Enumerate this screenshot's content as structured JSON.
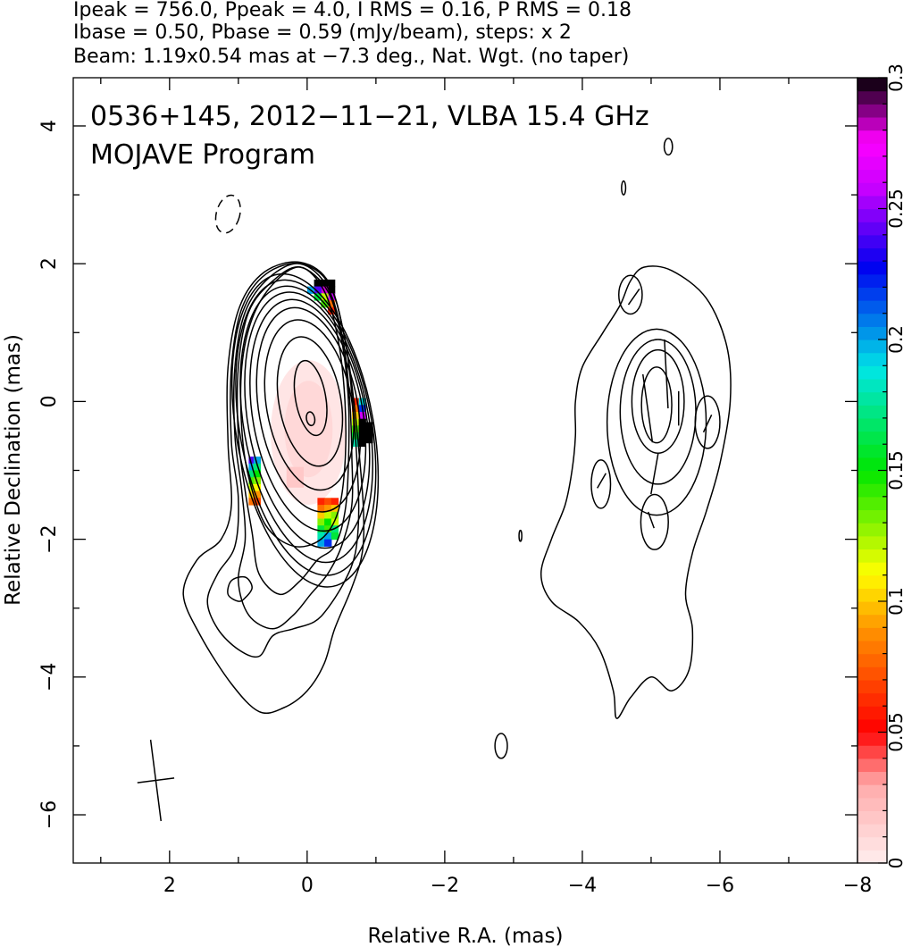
{
  "header": {
    "line1": "Ipeak = 756.0, Ppeak = 4.0, I RMS = 0.16, P RMS = 0.18",
    "line2": "Ibase = 0.50, Pbase = 0.59 (mJy/beam), steps: x 2",
    "line3": "Beam: 1.19x0.54 mas at −7.3 deg., Nat. Wgt. (no taper)"
  },
  "chart_data": {
    "type": "contour",
    "title_line1": "0536+145, 2012−11−21, VLBA 15.4 GHz",
    "title_line2": "MOJAVE Program",
    "xlabel": "Relative R.A. (mas)",
    "ylabel": "Relative Declination (mas)",
    "xlim": [
      3.4,
      -8.0
    ],
    "ylim": [
      -6.7,
      4.7
    ],
    "x_ticks": [
      {
        "v": 2,
        "label": "2"
      },
      {
        "v": 0,
        "label": "0"
      },
      {
        "v": -2,
        "label": "−2"
      },
      {
        "v": -4,
        "label": "−4"
      },
      {
        "v": -6,
        "label": "−6"
      },
      {
        "v": -8,
        "label": "−8"
      }
    ],
    "y_ticks": [
      {
        "v": 4,
        "label": "4"
      },
      {
        "v": 2,
        "label": "2"
      },
      {
        "v": 0,
        "label": "0"
      },
      {
        "v": -2,
        "label": "−2"
      },
      {
        "v": -4,
        "label": "−4"
      },
      {
        "v": -6,
        "label": "−6"
      }
    ],
    "colorbar": {
      "min": 0,
      "max": 0.3,
      "ticks": [
        {
          "v": 0,
          "label": "0"
        },
        {
          "v": 0.05,
          "label": "0.05"
        },
        {
          "v": 0.1,
          "label": "0.1"
        },
        {
          "v": 0.15,
          "label": "0.15"
        },
        {
          "v": 0.2,
          "label": "0.2"
        },
        {
          "v": 0.25,
          "label": "0.25"
        },
        {
          "v": 0.3,
          "label": "0.3"
        }
      ]
    },
    "core_contours": [
      {
        "cx": -0.05,
        "cy": -0.25,
        "rx": 0.06,
        "ry": 0.1
      },
      {
        "cx": -0.05,
        "cy": 0.05,
        "rx": 0.22,
        "ry": 0.55
      },
      {
        "cx": -0.04,
        "cy": 0.0,
        "rx": 0.45,
        "ry": 0.95
      },
      {
        "cx": -0.03,
        "cy": -0.05,
        "rx": 0.62,
        "ry": 1.25
      },
      {
        "cx": -0.02,
        "cy": -0.12,
        "rx": 0.72,
        "ry": 1.5
      },
      {
        "cx": -0.01,
        "cy": -0.2,
        "rx": 0.8,
        "ry": 1.7
      },
      {
        "cx": 0.0,
        "cy": -0.27,
        "rx": 0.86,
        "ry": 1.88
      },
      {
        "cx": 0.01,
        "cy": -0.33,
        "rx": 0.91,
        "ry": 2.03
      },
      {
        "cx": 0.02,
        "cy": -0.38,
        "rx": 0.96,
        "ry": 2.17
      },
      {
        "cx": 0.03,
        "cy": -0.42,
        "rx": 1.0,
        "ry": 2.3
      }
    ],
    "jet_contours": [
      [
        [
          0.1,
          1.95
        ],
        [
          0.5,
          1.7
        ],
        [
          0.8,
          1.2
        ],
        [
          0.95,
          0.5
        ],
        [
          0.95,
          -0.4
        ],
        [
          0.85,
          -1.1
        ],
        [
          0.6,
          -1.8
        ],
        [
          0.2,
          -2.1
        ],
        [
          -0.2,
          -2.0
        ],
        [
          -0.45,
          -1.6
        ],
        [
          -0.55,
          -0.9
        ],
        [
          -0.55,
          0.0
        ],
        [
          -0.45,
          0.9
        ],
        [
          -0.25,
          1.6
        ]
      ],
      [
        [
          0.1,
          1.95
        ],
        [
          0.5,
          1.75
        ],
        [
          0.85,
          1.3
        ],
        [
          1.0,
          0.5
        ],
        [
          1.0,
          -0.5
        ],
        [
          0.9,
          -1.3
        ],
        [
          0.8,
          -1.9
        ],
        [
          0.7,
          -2.5
        ],
        [
          0.4,
          -2.8
        ],
        [
          0.1,
          -2.6
        ],
        [
          -0.15,
          -2.3
        ],
        [
          -0.4,
          -2.1
        ],
        [
          -0.55,
          -1.6
        ],
        [
          -0.6,
          -0.9
        ],
        [
          -0.6,
          0.0
        ],
        [
          -0.5,
          0.9
        ],
        [
          -0.3,
          1.6
        ]
      ],
      [
        [
          0.1,
          2.0
        ],
        [
          0.55,
          1.8
        ],
        [
          0.9,
          1.3
        ],
        [
          1.05,
          0.5
        ],
        [
          1.05,
          -0.5
        ],
        [
          0.95,
          -1.3
        ],
        [
          0.9,
          -2.0
        ],
        [
          1.0,
          -2.6
        ],
        [
          0.85,
          -3.1
        ],
        [
          0.5,
          -3.3
        ],
        [
          0.2,
          -3.1
        ],
        [
          -0.05,
          -2.8
        ],
        [
          -0.3,
          -2.5
        ],
        [
          -0.5,
          -2.1
        ],
        [
          -0.65,
          -1.5
        ],
        [
          -0.65,
          -0.8
        ],
        [
          -0.62,
          0.0
        ],
        [
          -0.52,
          0.9
        ],
        [
          -0.3,
          1.65
        ]
      ],
      [
        [
          0.1,
          2.0
        ],
        [
          0.6,
          1.85
        ],
        [
          0.95,
          1.35
        ],
        [
          1.1,
          0.5
        ],
        [
          1.1,
          -0.6
        ],
        [
          1.0,
          -1.4
        ],
        [
          1.05,
          -2.1
        ],
        [
          1.3,
          -2.5
        ],
        [
          1.45,
          -2.9
        ],
        [
          1.3,
          -3.3
        ],
        [
          1.0,
          -3.6
        ],
        [
          0.7,
          -3.7
        ],
        [
          0.5,
          -3.4
        ],
        [
          0.2,
          -3.3
        ],
        [
          -0.1,
          -3.2
        ],
        [
          -0.3,
          -3.0
        ],
        [
          -0.55,
          -2.6
        ],
        [
          -0.7,
          -2.2
        ],
        [
          -0.75,
          -1.6
        ],
        [
          -0.72,
          -0.8
        ],
        [
          -0.66,
          0.0
        ],
        [
          -0.55,
          0.9
        ],
        [
          -0.32,
          1.7
        ]
      ],
      [
        [
          0.1,
          2.02
        ],
        [
          0.62,
          1.88
        ],
        [
          0.98,
          1.38
        ],
        [
          1.15,
          0.5
        ],
        [
          1.15,
          -0.6
        ],
        [
          1.1,
          -1.5
        ],
        [
          1.25,
          -2.0
        ],
        [
          1.6,
          -2.3
        ],
        [
          1.8,
          -2.8
        ],
        [
          1.55,
          -3.4
        ],
        [
          1.1,
          -4.1
        ],
        [
          0.7,
          -4.5
        ],
        [
          0.35,
          -4.45
        ],
        [
          0.0,
          -4.2
        ],
        [
          -0.25,
          -3.8
        ],
        [
          -0.4,
          -3.3
        ],
        [
          -0.65,
          -2.7
        ],
        [
          -0.8,
          -2.2
        ],
        [
          -0.82,
          -1.6
        ],
        [
          -0.76,
          -0.8
        ],
        [
          -0.68,
          0.0
        ],
        [
          -0.55,
          0.9
        ],
        [
          -0.32,
          1.72
        ]
      ]
    ],
    "jet_hole": [
      [
        0.9,
        -2.85
      ],
      [
        0.8,
        -2.7
      ],
      [
        0.9,
        -2.55
      ],
      [
        1.1,
        -2.6
      ],
      [
        1.15,
        -2.8
      ],
      [
        1.0,
        -2.9
      ]
    ],
    "west_outer": [
      [
        -4.9,
        1.95
      ],
      [
        -5.3,
        1.9
      ],
      [
        -5.8,
        1.5
      ],
      [
        -6.1,
        0.8
      ],
      [
        -6.15,
        0.0
      ],
      [
        -6.0,
        -0.9
      ],
      [
        -5.8,
        -1.6
      ],
      [
        -5.6,
        -2.2
      ],
      [
        -5.5,
        -2.8
      ],
      [
        -5.6,
        -3.3
      ],
      [
        -5.55,
        -3.9
      ],
      [
        -5.3,
        -4.2
      ],
      [
        -5.0,
        -4.0
      ],
      [
        -4.7,
        -4.3
      ],
      [
        -4.5,
        -4.6
      ],
      [
        -4.45,
        -4.2
      ],
      [
        -4.25,
        -3.6
      ],
      [
        -3.95,
        -3.2
      ],
      [
        -3.55,
        -2.9
      ],
      [
        -3.4,
        -2.5
      ],
      [
        -3.55,
        -2.0
      ],
      [
        -3.75,
        -1.5
      ],
      [
        -3.85,
        -1.0
      ],
      [
        -3.9,
        -0.5
      ],
      [
        -3.9,
        0.0
      ],
      [
        -4.0,
        0.5
      ],
      [
        -4.3,
        1.0
      ],
      [
        -4.55,
        1.4
      ],
      [
        -4.7,
        1.75
      ]
    ],
    "west_contours": [
      {
        "cx": -5.08,
        "cy": -0.05,
        "rx": 0.22,
        "ry": 0.55
      },
      {
        "cx": -5.1,
        "cy": 0.0,
        "rx": 0.38,
        "ry": 0.75
      },
      {
        "cx": -5.1,
        "cy": -0.15,
        "rx": 0.55,
        "ry": 1.05
      },
      {
        "cx": -5.08,
        "cy": -0.3,
        "rx": 0.72,
        "ry": 1.35
      },
      {
        "cx": -4.7,
        "cy": 1.55,
        "rx": 0.17,
        "ry": 0.28
      },
      {
        "cx": -4.27,
        "cy": -1.2,
        "rx": 0.14,
        "ry": 0.35
      },
      {
        "cx": -5.05,
        "cy": -1.75,
        "rx": 0.2,
        "ry": 0.4
      },
      {
        "cx": -5.82,
        "cy": -0.3,
        "rx": 0.18,
        "ry": 0.38
      },
      {
        "cx": -5.25,
        "cy": 3.7,
        "rx": 0.06,
        "ry": 0.12
      },
      {
        "cx": -4.6,
        "cy": 3.1,
        "rx": 0.03,
        "ry": 0.1
      },
      {
        "cx": -3.1,
        "cy": -1.95,
        "rx": 0.02,
        "ry": 0.08
      },
      {
        "cx": -2.82,
        "cy": -5.0,
        "rx": 0.09,
        "ry": 0.18
      }
    ],
    "negative_contour": {
      "cx": 1.15,
      "cy": 2.72,
      "rx": 0.17,
      "ry": 0.28
    },
    "evpa_sticks": [
      [
        -4.75,
        1.52,
        0.28,
        35
      ],
      [
        -4.28,
        -1.15,
        0.25,
        30
      ],
      [
        -5.0,
        -1.72,
        0.25,
        -20
      ],
      [
        -5.82,
        -0.32,
        0.28,
        25
      ],
      [
        -5.05,
        -1.05,
        0.6,
        10
      ],
      [
        -4.95,
        -0.1,
        1.0,
        -8
      ],
      [
        -5.22,
        0.4,
        1.0,
        -3
      ],
      [
        -5.4,
        -0.1,
        0.5,
        0
      ]
    ],
    "pol_pixels": [
      [
        -0.35,
        1.72,
        0.3
      ],
      [
        -0.25,
        1.72,
        0.3
      ],
      [
        -0.15,
        1.72,
        0.3
      ],
      [
        -0.35,
        1.62,
        0.3
      ],
      [
        -0.25,
        1.62,
        0.28
      ],
      [
        -0.15,
        1.62,
        0.24
      ],
      [
        -0.05,
        1.62,
        0.2
      ],
      [
        -0.35,
        1.52,
        0.26
      ],
      [
        -0.25,
        1.52,
        0.12
      ],
      [
        -0.15,
        1.52,
        0.16
      ],
      [
        -0.35,
        1.42,
        0.08
      ],
      [
        -0.25,
        1.42,
        0.14
      ],
      [
        -0.35,
        1.32,
        0.06
      ],
      [
        0.8,
        -0.85,
        0.24
      ],
      [
        0.8,
        -0.95,
        0.2
      ],
      [
        0.8,
        -1.05,
        0.17
      ],
      [
        0.8,
        -1.15,
        0.14
      ],
      [
        0.8,
        -1.25,
        0.12
      ],
      [
        0.8,
        -1.35,
        0.1
      ],
      [
        0.8,
        -1.45,
        0.08
      ],
      [
        0.73,
        -0.85,
        0.2
      ],
      [
        0.73,
        -0.95,
        0.17
      ],
      [
        0.73,
        -1.05,
        0.15
      ],
      [
        0.73,
        -1.15,
        0.13
      ],
      [
        0.73,
        -1.25,
        0.11
      ],
      [
        0.73,
        -1.35,
        0.09
      ],
      [
        0.73,
        -1.45,
        0.07
      ],
      [
        -0.7,
        0.0,
        0.06
      ],
      [
        -0.7,
        -0.1,
        0.08
      ],
      [
        -0.7,
        -0.2,
        0.1
      ],
      [
        -0.7,
        -0.3,
        0.12
      ],
      [
        -0.7,
        -0.4,
        0.14
      ],
      [
        -0.7,
        -0.5,
        0.16
      ],
      [
        -0.7,
        -0.6,
        0.18
      ],
      [
        -0.8,
        0.0,
        0.19
      ],
      [
        -0.8,
        -0.1,
        0.22
      ],
      [
        -0.8,
        -0.2,
        0.26
      ],
      [
        -0.8,
        -0.3,
        0.3
      ],
      [
        -0.8,
        -0.4,
        0.3
      ],
      [
        -0.8,
        -0.5,
        0.3
      ],
      [
        -0.8,
        -0.6,
        0.3
      ],
      [
        -0.9,
        -0.35,
        0.3
      ],
      [
        -0.9,
        -0.45,
        0.3
      ],
      [
        -0.9,
        -0.55,
        0.3
      ],
      [
        -0.2,
        -1.45,
        0.06
      ],
      [
        -0.3,
        -1.45,
        0.07
      ],
      [
        -0.4,
        -1.45,
        0.06
      ],
      [
        -0.2,
        -1.55,
        0.08
      ],
      [
        -0.3,
        -1.55,
        0.09
      ],
      [
        -0.4,
        -1.55,
        0.1
      ],
      [
        -0.2,
        -1.65,
        0.1
      ],
      [
        -0.3,
        -1.65,
        0.12
      ],
      [
        -0.4,
        -1.65,
        0.13
      ],
      [
        -0.2,
        -1.75,
        0.13
      ],
      [
        -0.3,
        -1.75,
        0.15
      ],
      [
        -0.4,
        -1.75,
        0.12
      ],
      [
        -0.2,
        -1.85,
        0.16
      ],
      [
        -0.3,
        -1.85,
        0.14
      ],
      [
        -0.4,
        -1.85,
        0.17
      ],
      [
        -0.2,
        -1.95,
        0.18
      ],
      [
        -0.3,
        -1.95,
        0.2
      ],
      [
        -0.4,
        -1.95,
        0.16
      ],
      [
        -0.2,
        -2.05,
        0.2
      ],
      [
        -0.3,
        -2.05,
        0.22
      ]
    ],
    "beam": {
      "cx": 2.2,
      "cy": -5.5,
      "major": 1.19,
      "minor": 0.54,
      "pa": -7.3
    }
  }
}
